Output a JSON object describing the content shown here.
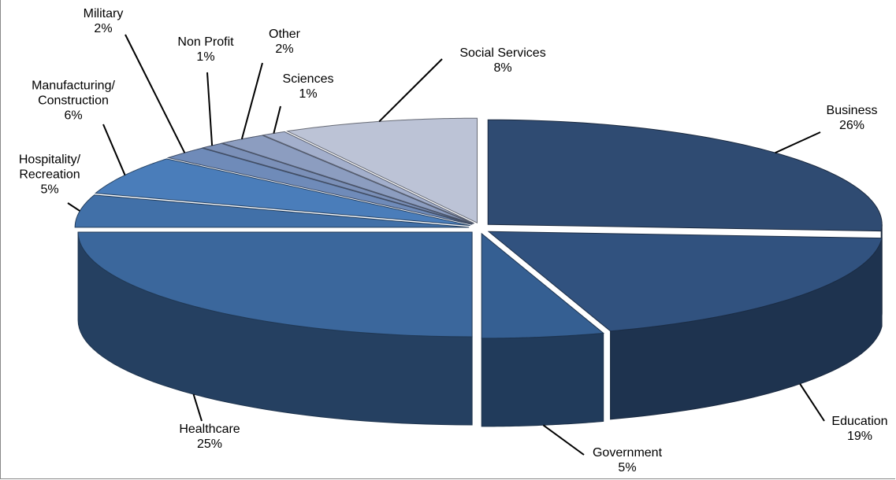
{
  "chart_data": {
    "type": "pie3d",
    "categories": [
      "Business",
      "Education",
      "Government",
      "Healthcare",
      "Hospitality/\nRecreation",
      "Manufacturing/\nConstruction",
      "Military",
      "Non Profit",
      "Other",
      "Sciences",
      "Social Services"
    ],
    "values": [
      26,
      19,
      5,
      25,
      5,
      6,
      2,
      1,
      2,
      1,
      8
    ],
    "value_labels": [
      "26%",
      "19%",
      "5%",
      "25%",
      "5%",
      "6%",
      "2%",
      "1%",
      "2%",
      "1%",
      "8%"
    ],
    "colors": [
      "#2f4b72",
      "#31527f",
      "#355f92",
      "#3b679c",
      "#4170a8",
      "#4a7dba",
      "#6f8bb9",
      "#7b90b8",
      "#8c9dc0",
      "#a3afcc",
      "#bcc3d6"
    ]
  }
}
